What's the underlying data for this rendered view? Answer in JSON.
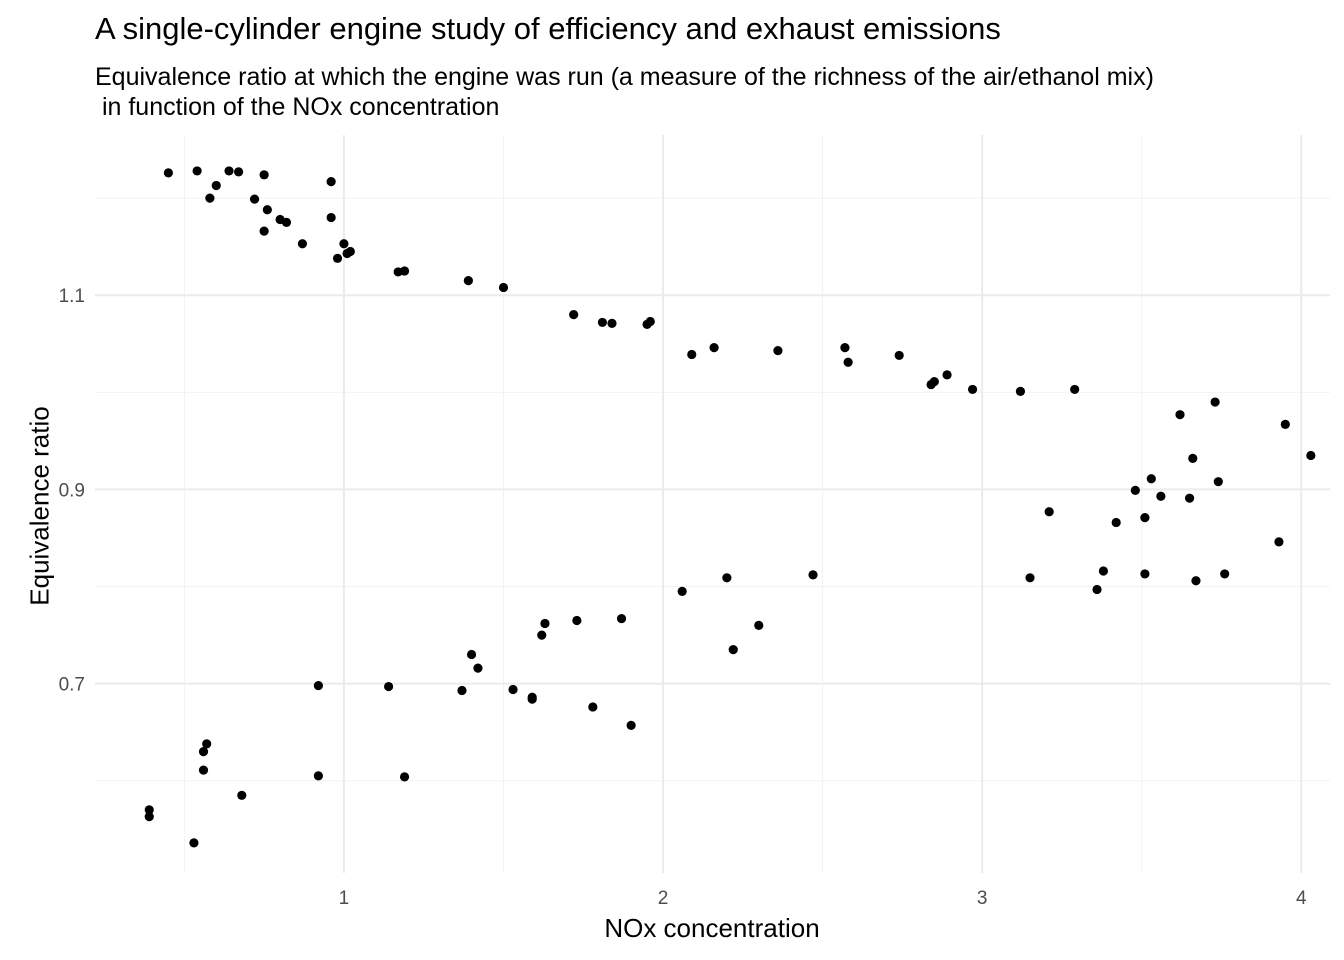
{
  "chart_data": {
    "type": "scatter",
    "title": "A single-cylinder engine study of efficiency and exhaust emissions",
    "subtitle": "Equivalence ratio at which the engine was run (a measure of the richness of the air/ethanol mix)\n in function of the NOx concentration",
    "xlabel": "NOx concentration",
    "ylabel": "Equivalence ratio",
    "xlim": [
      0.22,
      4.09
    ],
    "ylim": [
      0.505,
      1.265
    ],
    "x_ticks": [
      1,
      2,
      3,
      4
    ],
    "x_tick_labels": [
      "1",
      "2",
      "3",
      "4"
    ],
    "y_ticks": [
      0.7,
      0.9,
      1.1
    ],
    "y_tick_labels": [
      "0.7",
      "0.9",
      "1.1"
    ],
    "grid": true,
    "legend": "none",
    "point_color": "#000000",
    "points": [
      [
        0.45,
        1.226
      ],
      [
        0.54,
        1.228
      ],
      [
        0.58,
        1.2
      ],
      [
        0.6,
        1.213
      ],
      [
        0.64,
        1.228
      ],
      [
        0.67,
        1.227
      ],
      [
        0.72,
        1.199
      ],
      [
        0.75,
        1.224
      ],
      [
        0.75,
        1.166
      ],
      [
        0.76,
        1.188
      ],
      [
        0.8,
        1.178
      ],
      [
        0.82,
        1.175
      ],
      [
        0.87,
        1.153
      ],
      [
        0.96,
        1.217
      ],
      [
        0.96,
        1.18
      ],
      [
        0.98,
        1.138
      ],
      [
        1.0,
        1.153
      ],
      [
        1.01,
        1.143
      ],
      [
        1.02,
        1.145
      ],
      [
        1.17,
        1.124
      ],
      [
        1.19,
        1.125
      ],
      [
        1.39,
        1.115
      ],
      [
        1.5,
        1.108
      ],
      [
        1.72,
        1.08
      ],
      [
        1.81,
        1.072
      ],
      [
        1.84,
        1.071
      ],
      [
        1.95,
        1.07
      ],
      [
        1.96,
        1.073
      ],
      [
        2.09,
        1.039
      ],
      [
        2.16,
        1.046
      ],
      [
        2.36,
        1.043
      ],
      [
        2.57,
        1.046
      ],
      [
        2.58,
        1.031
      ],
      [
        2.74,
        1.038
      ],
      [
        2.84,
        1.008
      ],
      [
        2.85,
        1.011
      ],
      [
        2.89,
        1.018
      ],
      [
        2.97,
        1.003
      ],
      [
        3.12,
        1.001
      ],
      [
        3.29,
        1.003
      ],
      [
        3.21,
        0.877
      ],
      [
        3.15,
        0.809
      ],
      [
        3.36,
        0.797
      ],
      [
        3.38,
        0.816
      ],
      [
        3.42,
        0.866
      ],
      [
        3.48,
        0.899
      ],
      [
        3.51,
        0.871
      ],
      [
        3.51,
        0.813
      ],
      [
        3.53,
        0.911
      ],
      [
        3.56,
        0.893
      ],
      [
        3.62,
        0.977
      ],
      [
        3.65,
        0.891
      ],
      [
        3.66,
        0.932
      ],
      [
        3.67,
        0.806
      ],
      [
        3.73,
        0.99
      ],
      [
        3.74,
        0.908
      ],
      [
        3.76,
        0.813
      ],
      [
        3.93,
        0.846
      ],
      [
        3.95,
        0.967
      ],
      [
        4.03,
        0.935
      ],
      [
        0.39,
        0.57
      ],
      [
        0.39,
        0.563
      ],
      [
        0.53,
        0.536
      ],
      [
        0.56,
        0.63
      ],
      [
        0.57,
        0.638
      ],
      [
        0.56,
        0.611
      ],
      [
        0.68,
        0.585
      ],
      [
        0.92,
        0.698
      ],
      [
        0.92,
        0.605
      ],
      [
        1.14,
        0.697
      ],
      [
        1.19,
        0.604
      ],
      [
        1.37,
        0.693
      ],
      [
        1.4,
        0.73
      ],
      [
        1.42,
        0.716
      ],
      [
        1.53,
        0.694
      ],
      [
        1.59,
        0.686
      ],
      [
        1.59,
        0.684
      ],
      [
        1.62,
        0.75
      ],
      [
        1.63,
        0.762
      ],
      [
        1.73,
        0.765
      ],
      [
        1.78,
        0.676
      ],
      [
        1.87,
        0.767
      ],
      [
        1.9,
        0.657
      ],
      [
        2.06,
        0.795
      ],
      [
        2.2,
        0.809
      ],
      [
        2.22,
        0.735
      ],
      [
        2.3,
        0.76
      ],
      [
        2.47,
        0.812
      ]
    ]
  }
}
